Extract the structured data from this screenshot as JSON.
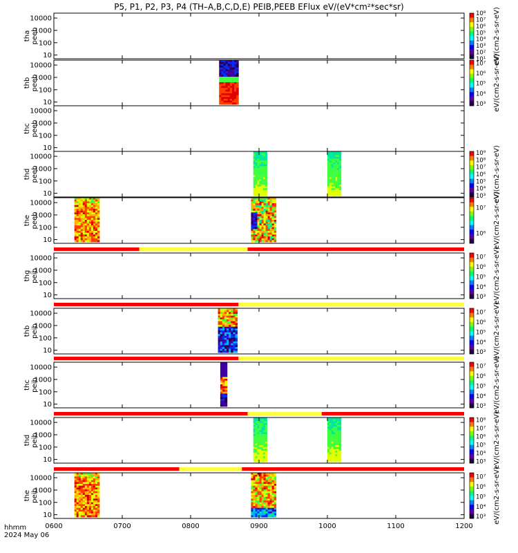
{
  "chart_data": {
    "type": "heatmap",
    "title": "P5, P1, P2, P3, P4 (TH–A,B,C,D,E) PEIB,PEEB EFlux eV/(eV*cm²*sec*sr)",
    "x_label_line1": "hhmm",
    "x_label_line2": "2024 May 06",
    "x_ticks": [
      "0600",
      "0700",
      "0800",
      "0900",
      "1000",
      "1100",
      "1200"
    ],
    "x_range_hours": [
      6,
      12
    ],
    "y_ticks": [
      "10",
      "100",
      "1000",
      "10000"
    ],
    "y_range_eV": [
      5,
      25000
    ],
    "y_scale": "log",
    "colorbar_label": "eV/(cm2-s-sr-eV)",
    "colormap": [
      "#200040",
      "#4000a0",
      "#0030ff",
      "#00b0ff",
      "#00e8a0",
      "#40ff40",
      "#e0ff00",
      "#ffb000",
      "#ff4000",
      "#e00000"
    ],
    "panels": [
      {
        "probe": "tha",
        "species": "peeb",
        "cb_ticks": [
          "10¹",
          "10²",
          "10³",
          "10⁴",
          "10⁵",
          "10⁶",
          "10⁷",
          "10⁸"
        ],
        "cb_range_log": [
          1,
          8
        ],
        "bar": null,
        "data_blocks": []
      },
      {
        "probe": "thb",
        "species": "peeb",
        "cb_ticks": [
          "10³",
          "10⁴",
          "10⁵",
          "10⁶",
          "10⁷"
        ],
        "cb_range_log": [
          2.8,
          7.3
        ],
        "bar": null,
        "data_blocks": [
          {
            "start": "08:25",
            "end": "08:42",
            "pattern": "low_red_high_dark"
          }
        ]
      },
      {
        "probe": "thc",
        "species": "peeb",
        "cb_ticks": [],
        "cb_range_log": [
          0,
          0
        ],
        "bar": null,
        "data_blocks": []
      },
      {
        "probe": "thd",
        "species": "peeb",
        "cb_ticks": [
          "10³",
          "10⁴",
          "10⁵",
          "10⁶",
          "10⁷",
          "10⁸",
          "10⁹"
        ],
        "cb_range_log": [
          2.8,
          9.2
        ],
        "bar": null,
        "data_blocks": [
          {
            "start": "08:55",
            "end": "09:07",
            "pattern": "greenish"
          },
          {
            "start": "10:00",
            "end": "10:12",
            "pattern": "greenish"
          }
        ]
      },
      {
        "probe": "the",
        "species": "peeb",
        "cb_ticks": [
          "10⁶",
          "10⁷"
        ],
        "cb_range_log": [
          5.6,
          7.4
        ],
        "bar": null,
        "data_blocks": [
          {
            "start": "06:18",
            "end": "06:40",
            "pattern": "hot"
          },
          {
            "start": "08:53",
            "end": "09:15",
            "pattern": "mixed_hot"
          }
        ]
      },
      {
        "probe": "thg",
        "species": "peib",
        "cb_ticks": [
          "10³",
          "10⁴",
          "10⁵",
          "10⁶",
          "10⁷"
        ],
        "cb_range_log": [
          2.8,
          7.4
        ],
        "bar": [
          [
            "06:00",
            "07:15",
            "red"
          ],
          [
            "07:15",
            "08:50",
            "yellow"
          ],
          [
            "08:50",
            "12:00",
            "red"
          ]
        ],
        "data_blocks": []
      },
      {
        "probe": "thb",
        "species": "peib",
        "cb_ticks": [
          "10³",
          "10⁴",
          "10⁵",
          "10⁶",
          "10⁷"
        ],
        "cb_range_log": [
          2.8,
          7.4
        ],
        "bar": [
          [
            "06:00",
            "08:42",
            "red"
          ],
          [
            "08:42",
            "12:00",
            "yellow"
          ]
        ],
        "data_blocks": [
          {
            "start": "08:24",
            "end": "08:41",
            "pattern": "low_dark_high_red"
          }
        ]
      },
      {
        "probe": "thc",
        "species": "peib",
        "cb_ticks": [
          "10³",
          "10⁴",
          "10⁵",
          "10⁶",
          "10⁷"
        ],
        "cb_range_log": [
          2.8,
          7.4
        ],
        "bar": [
          [
            "06:00",
            "08:42",
            "red"
          ],
          [
            "08:42",
            "12:00",
            "yellow"
          ]
        ],
        "data_blocks": [
          {
            "start": "08:26",
            "end": "08:32",
            "pattern": "column"
          }
        ]
      },
      {
        "probe": "thd",
        "species": "peib",
        "cb_ticks": [
          "10³",
          "10⁴",
          "10⁵",
          "10⁶",
          "10⁷",
          "10⁸"
        ],
        "cb_range_log": [
          2.8,
          8.3
        ],
        "bar": [
          [
            "06:00",
            "08:50",
            "red"
          ],
          [
            "08:50",
            "09:55",
            "yellow"
          ],
          [
            "09:55",
            "12:00",
            "red"
          ]
        ],
        "data_blocks": [
          {
            "start": "08:55",
            "end": "09:07",
            "pattern": "greenish"
          },
          {
            "start": "10:00",
            "end": "10:12",
            "pattern": "greenish"
          }
        ]
      },
      {
        "probe": "the",
        "species": "peib",
        "cb_ticks": [
          "10³",
          "10⁴",
          "10⁵",
          "10⁶",
          "10⁷"
        ],
        "cb_range_log": [
          2.8,
          7.4
        ],
        "bar": [
          [
            "06:00",
            "07:50",
            "red"
          ],
          [
            "07:50",
            "08:45",
            "yellow"
          ],
          [
            "08:45",
            "12:00",
            "red"
          ]
        ],
        "data_blocks": [
          {
            "start": "06:18",
            "end": "06:40",
            "pattern": "hot"
          },
          {
            "start": "08:53",
            "end": "09:15",
            "pattern": "mixed_cool"
          }
        ]
      }
    ]
  }
}
